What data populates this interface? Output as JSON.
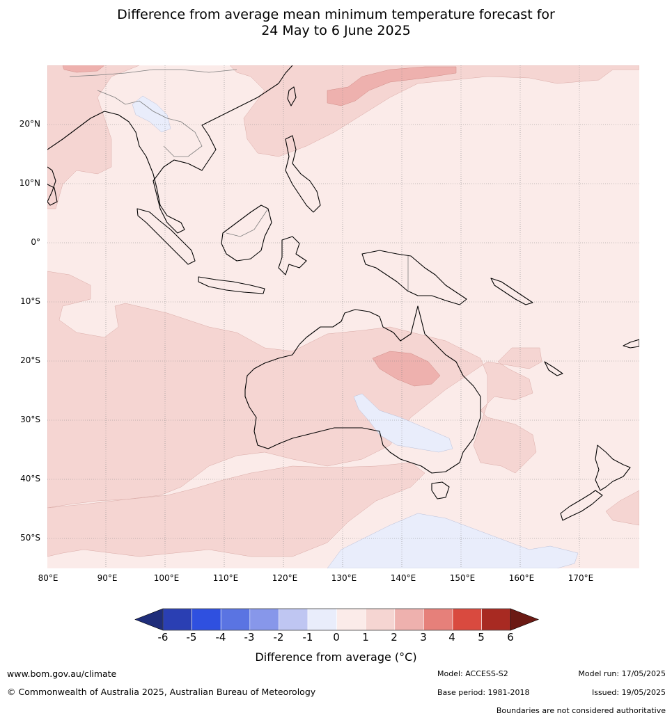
{
  "title_line1": "Difference from average mean minimum temperature forecast for",
  "title_line2": "24 May to 6 June 2025",
  "map": {
    "lon_range": [
      80,
      180
    ],
    "lat_range": [
      -55,
      30
    ],
    "lat_labels": [
      "20°N",
      "10°N",
      "0°",
      "10°S",
      "20°S",
      "30°S",
      "40°S",
      "50°S"
    ],
    "lon_labels": [
      "80°E",
      "90°E",
      "100°E",
      "110°E",
      "120°E",
      "130°E",
      "140°E",
      "150°E",
      "160°E",
      "170°E"
    ],
    "region_colors": {
      "band_0_1": "#fbebe9",
      "band_1_2": "#f5d5d2",
      "band_2_3": "#eeb1ae",
      "band_3_4": "#e6807a",
      "band_neg1_0": "#e9edfb",
      "land_outline": "#000000",
      "border": "#7a7a7a"
    }
  },
  "colorbar": {
    "title": "Difference from average (°C)",
    "tick_labels": [
      "-6",
      "-5",
      "-4",
      "-3",
      "-2",
      "-1",
      "0",
      "1",
      "2",
      "3",
      "4",
      "5",
      "6"
    ],
    "colors": [
      "#1f2d7a",
      "#2a3fb3",
      "#2f50e0",
      "#5a74e2",
      "#8797ea",
      "#bfc6f2",
      "#e9edfb",
      "#fbebe9",
      "#f5d5d2",
      "#eeb1ae",
      "#e6807a",
      "#d94a3f",
      "#a82a22",
      "#6b1a14"
    ]
  },
  "footer": {
    "website": "www.bom.gov.au/climate",
    "copyright": "© Commonwealth of Australia 2025, Australian Bureau of Meteorology",
    "model": "Model: ACCESS-S2",
    "base_period": "Base period: 1981-2018",
    "model_run": "Model run: 17/05/2025",
    "issued": "Issued: 19/05/2025",
    "disclaimer": "Boundaries are not considered authoritative"
  }
}
